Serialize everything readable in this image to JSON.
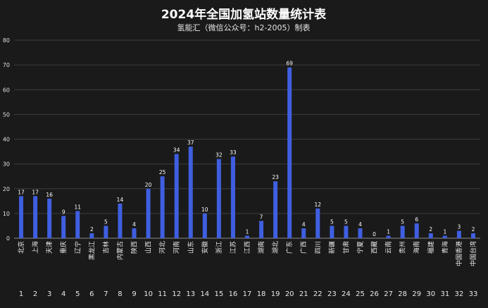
{
  "chart_data": {
    "type": "bar",
    "title": "2024年全国加氢站数量统计表",
    "subtitle": "氢能汇（微信公众号：h2-2005）制表",
    "xlabel": "",
    "ylabel": "",
    "ylim": [
      0,
      80
    ],
    "yticks": [
      0,
      10,
      20,
      30,
      40,
      50,
      60,
      70,
      80
    ],
    "grid": true,
    "legend": "none",
    "bar_color": "#3f5fe0",
    "background": "#1a1a1a",
    "categories": [
      "北京",
      "上海",
      "天津",
      "重庆",
      "辽宁",
      "黑龙江",
      "吉林",
      "内蒙古",
      "陕西",
      "山西",
      "河北",
      "河南",
      "山东",
      "安徽",
      "浙江",
      "江苏",
      "江西",
      "湖南",
      "湖北",
      "广东",
      "广西",
      "四川",
      "新疆",
      "甘肃",
      "宁夏",
      "西藏",
      "云南",
      "贵州",
      "海南",
      "福建",
      "青海",
      "中国香港",
      "中国台湾"
    ],
    "indices": [
      "1",
      "2",
      "3",
      "4",
      "5",
      "6",
      "7",
      "8",
      "9",
      "10",
      "11",
      "12",
      "13",
      "14",
      "15",
      "16",
      "17",
      "18",
      "19",
      "20",
      "21",
      "22",
      "23",
      "24",
      "25",
      "26",
      "27",
      "28",
      "29",
      "30",
      "31",
      "32",
      "33"
    ],
    "values": [
      17,
      17,
      16,
      9,
      11,
      2,
      5,
      14,
      4,
      20,
      25,
      34,
      37,
      10,
      32,
      33,
      1,
      7,
      23,
      69,
      4,
      12,
      5,
      5,
      4,
      0,
      1,
      5,
      6,
      2,
      1,
      3,
      2
    ]
  }
}
